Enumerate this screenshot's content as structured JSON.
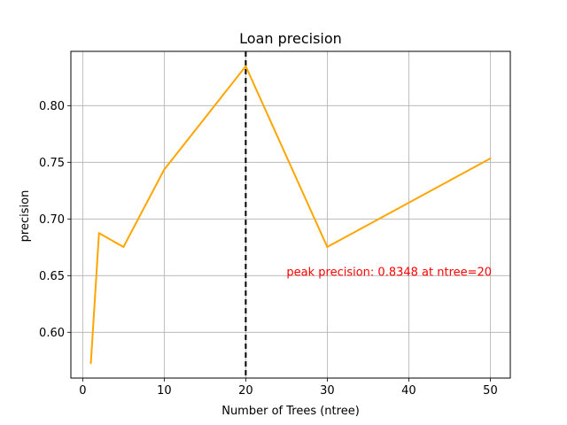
{
  "chart_data": {
    "type": "line",
    "title": "Loan precision",
    "xlabel": "Number of Trees (ntree)",
    "ylabel": "precision",
    "x": [
      1,
      2,
      5,
      10,
      20,
      30,
      50
    ],
    "series": [
      {
        "values": [
          0.5727,
          0.6875,
          0.6753,
          0.7436,
          0.8348,
          0.6753,
          0.7534
        ],
        "color": "#ffa500"
      }
    ],
    "xlim": [
      -1.45,
      52.45
    ],
    "ylim": [
      0.5596,
      0.8479
    ],
    "xticks": [
      0,
      10,
      20,
      30,
      40,
      50
    ],
    "yticks": [
      0.6,
      0.65,
      0.7,
      0.75,
      0.8
    ],
    "xtick_labels": [
      "0",
      "10",
      "20",
      "30",
      "40",
      "50"
    ],
    "ytick_labels": [
      "0.60",
      "0.65",
      "0.70",
      "0.75",
      "0.80"
    ],
    "grid": true,
    "vline": {
      "x": 20,
      "color": "#000000",
      "style": "dashed"
    },
    "annotation": {
      "text": "peak precision: 0.8348 at ntree=20",
      "x": 25,
      "y": 0.65,
      "color": "#ff0000"
    }
  }
}
